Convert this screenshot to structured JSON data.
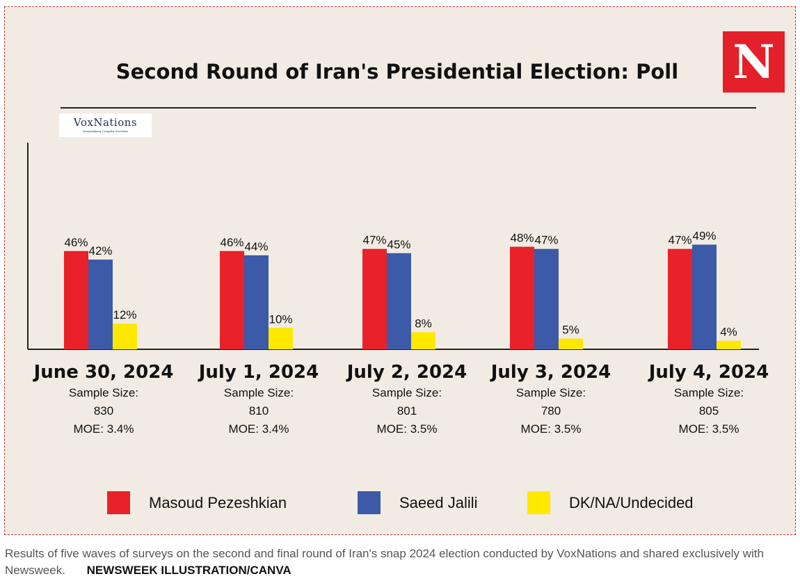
{
  "title": "Second Round of Iran's Presidential Election: Poll",
  "logos": {
    "newsweek": "N",
    "voxnations": "VoxNations",
    "voxnations_tagline": "Demystifying Complex Societies"
  },
  "chart_data": {
    "type": "bar",
    "title": "Second Round of Iran's Presidential Election: Poll",
    "categories": [
      "June 30, 2024",
      "July 1, 2024",
      "July 2, 2024",
      "July 3, 2024",
      "July 4, 2024"
    ],
    "details": [
      {
        "sample_label": "Sample Size:",
        "sample": "830",
        "moe": "MOE: 3.4%"
      },
      {
        "sample_label": "Sample Size:",
        "sample": "810",
        "moe": "MOE: 3.4%"
      },
      {
        "sample_label": "Sample Size:",
        "sample": "801",
        "moe": "MOE: 3.5%"
      },
      {
        "sample_label": "Sample Size:",
        "sample": "780",
        "moe": "MOE: 3.5%"
      },
      {
        "sample_label": "Sample Size:",
        "sample": "805",
        "moe": "MOE: 3.5%"
      }
    ],
    "series": [
      {
        "name": "Masoud Pezeshkian",
        "color": "#e8212a",
        "values": [
          46,
          46,
          47,
          48,
          47
        ]
      },
      {
        "name": "Saeed Jalili",
        "color": "#3d5aa8",
        "values": [
          42,
          44,
          45,
          47,
          49
        ]
      },
      {
        "name": "DK/NA/Undecided",
        "color": "#ffe800",
        "values": [
          12,
          10,
          8,
          5,
          4
        ]
      }
    ],
    "value_suffix": "%",
    "ylim": [
      0,
      100
    ],
    "grid": false,
    "legend_position": "bottom"
  },
  "caption": {
    "text": "Results of five waves of surveys on the second and final round of Iran's snap 2024 election conducted by VoxNations and shared exclusively with Newsweek.",
    "credit": "NEWSWEEK ILLUSTRATION/CANVA"
  }
}
